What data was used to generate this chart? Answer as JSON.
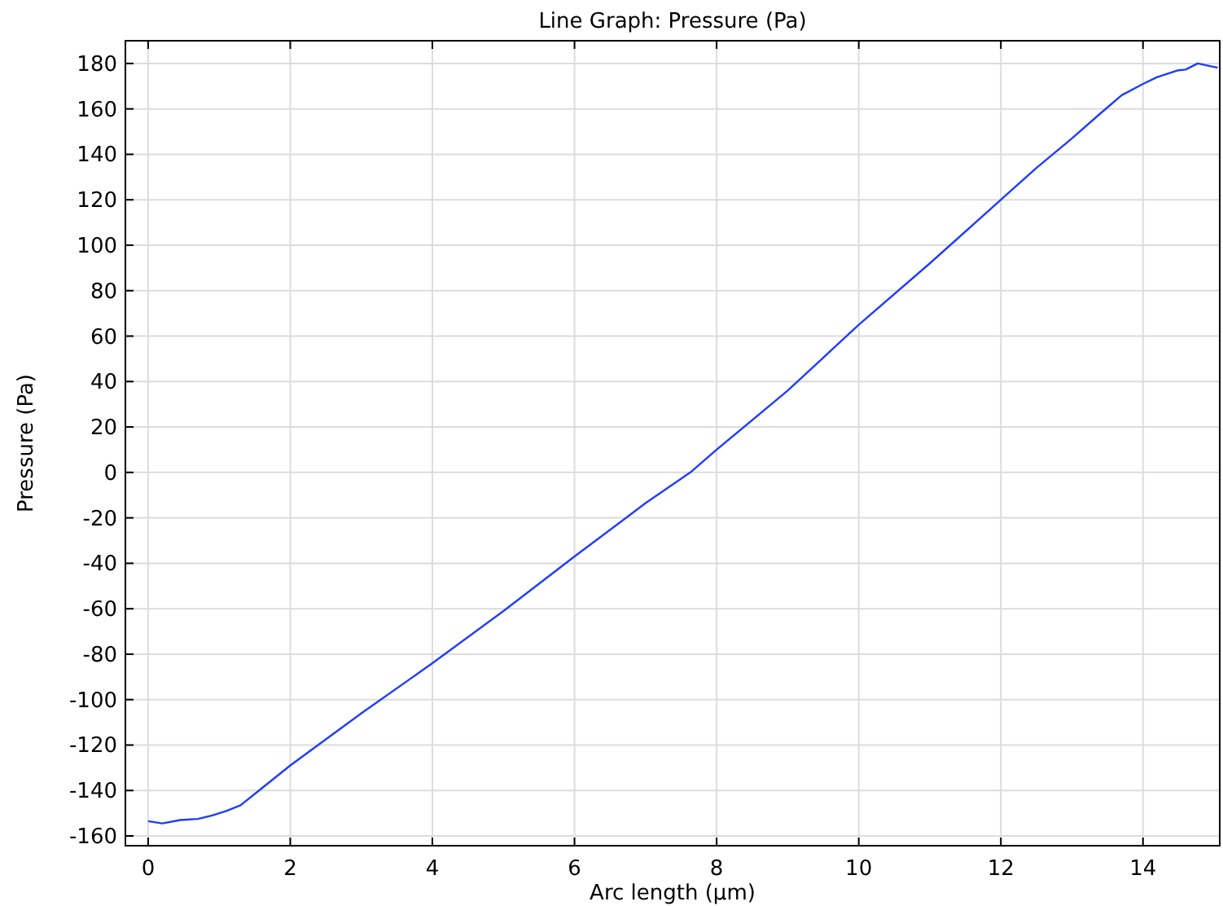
{
  "chart_data": {
    "type": "line",
    "title": "Line Graph: Pressure (Pa)",
    "xlabel": "Arc length (µm)",
    "ylabel": "Pressure (Pa)",
    "x": [
      0,
      0.2,
      0.45,
      0.7,
      0.9,
      1.1,
      1.3,
      1.6,
      2,
      3,
      4,
      5,
      6,
      7,
      7.63,
      8,
      9,
      10,
      11,
      12,
      12.5,
      13,
      13.4,
      13.7,
      14,
      14.2,
      14.48,
      14.6,
      14.77,
      15.05
    ],
    "series": [
      {
        "color": "#1f3cff",
        "values": [
          -153.5,
          -154.5,
          -153,
          -152.5,
          -151,
          -149,
          -146.5,
          -139,
          -129,
          -106,
          -84,
          -61,
          -37,
          -13.5,
          0,
          10,
          36,
          65,
          92,
          120,
          134,
          147,
          158,
          166,
          171,
          174,
          176.9,
          177.3,
          180,
          178.1
        ]
      }
    ],
    "xlim": [
      -0.32,
      15.08
    ],
    "ylim": [
      -164.3,
      190
    ],
    "xticks": [
      0,
      2,
      4,
      6,
      8,
      10,
      12,
      14
    ],
    "yticks": [
      -160,
      -140,
      -120,
      -100,
      -80,
      -60,
      -40,
      -20,
      0,
      20,
      40,
      60,
      80,
      100,
      120,
      140,
      160,
      180
    ],
    "grid": true
  }
}
